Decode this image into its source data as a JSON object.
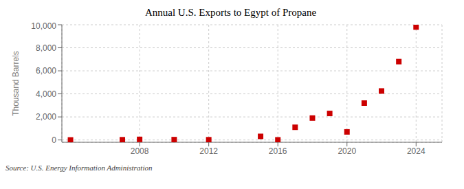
{
  "chart_data": {
    "type": "scatter",
    "title": "Annual U.S. Exports to Egypt of Propane",
    "ylabel": "Thousand Barrels",
    "annotations": [
      "Source: U.S. Energy Information Administration"
    ],
    "x": [
      2004,
      2007,
      2008,
      2010,
      2012,
      2015,
      2016,
      2017,
      2018,
      2019,
      2020,
      2021,
      2022,
      2023,
      2024
    ],
    "values": [
      2,
      20,
      50,
      30,
      20,
      310,
      10,
      1100,
      1900,
      2300,
      700,
      3200,
      4250,
      6800,
      9800
    ],
    "color": "#cc0000",
    "marker": "square",
    "xlim": [
      2003.5,
      2025.5
    ],
    "ylim": [
      -200,
      10000
    ],
    "xticks": [
      2008,
      2012,
      2016,
      2020,
      2024
    ],
    "yticks": [
      0,
      {
        "value": 2000,
        "label": "2,000"
      },
      {
        "value": 4000,
        "label": "4,000"
      },
      {
        "value": 6000,
        "label": "6,000"
      },
      {
        "value": 8000,
        "label": "8,000"
      },
      {
        "value": 10000,
        "label": "10,000"
      }
    ],
    "grid": true
  }
}
